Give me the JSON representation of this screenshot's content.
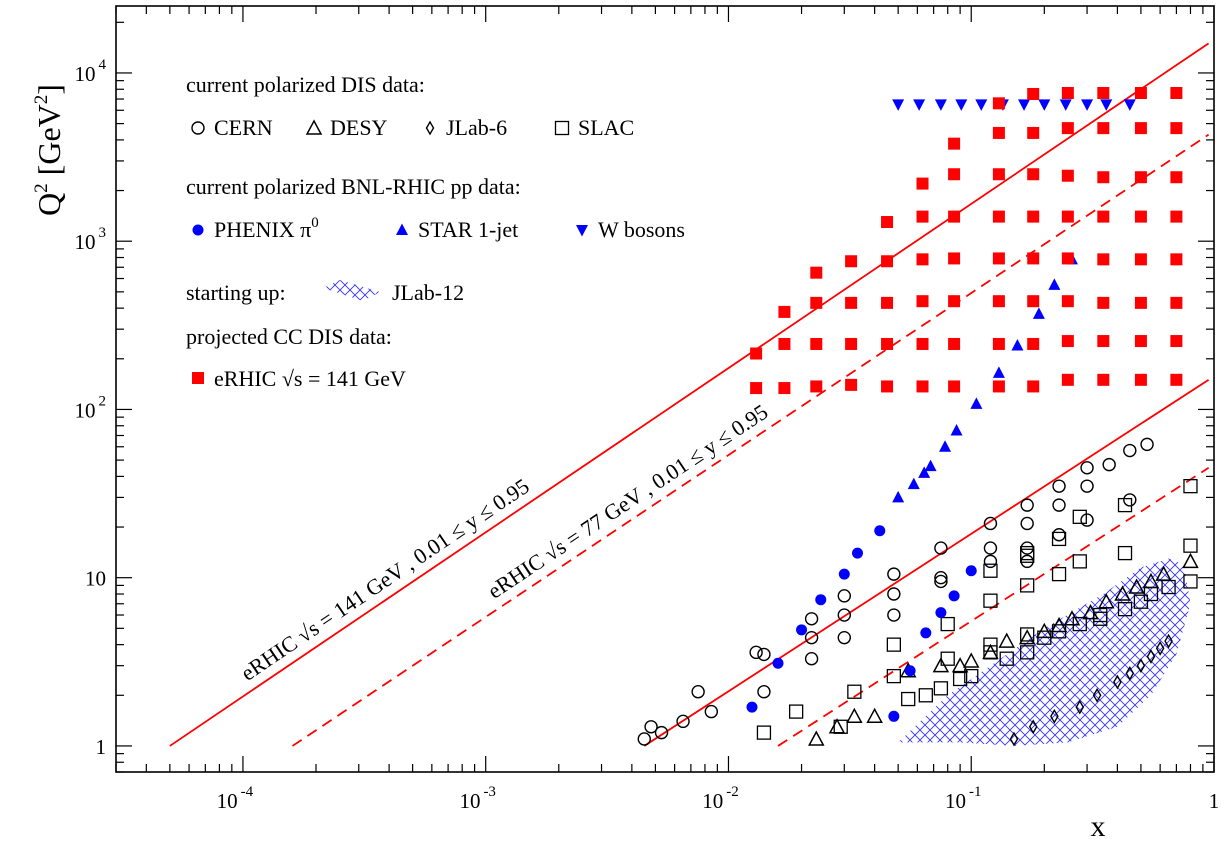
{
  "chart_data": {
    "type": "scatter",
    "x_scale": "log",
    "y_scale": "log",
    "xlim": [
      3e-05,
      1
    ],
    "ylim": [
      0.7,
      25000
    ],
    "xlabel": "x",
    "ylabel": "Q2 [GeV2]",
    "x_ticks": [
      {
        "value": 0.0001,
        "base": "10",
        "exp": "-4"
      },
      {
        "value": 0.001,
        "base": "10",
        "exp": "-3"
      },
      {
        "value": 0.01,
        "base": "10",
        "exp": "-2"
      },
      {
        "value": 0.1,
        "base": "10",
        "exp": "-1"
      },
      {
        "value": 1,
        "base": "1",
        "exp": ""
      }
    ],
    "y_ticks": [
      {
        "value": 1,
        "base": "1",
        "exp": ""
      },
      {
        "value": 10,
        "base": "10",
        "exp": ""
      },
      {
        "value": 100,
        "base": "10",
        "exp": "2"
      },
      {
        "value": 1000,
        "base": "10",
        "exp": "3"
      },
      {
        "value": 10000,
        "base": "10",
        "exp": "4"
      }
    ],
    "legend": {
      "groups": [
        {
          "title": "current polarized DIS data:",
          "items": [
            {
              "label": "CERN",
              "marker": "circle-open"
            },
            {
              "label": "DESY",
              "marker": "triangle-open"
            },
            {
              "label": "JLab-6",
              "marker": "diamond-open"
            },
            {
              "label": "SLAC",
              "marker": "square-open"
            }
          ]
        },
        {
          "title": "current polarized BNL-RHIC pp data:",
          "items": [
            {
              "label": "PHENIX π",
              "sup": "0",
              "marker": "circle-filled"
            },
            {
              "label": "STAR 1-jet",
              "marker": "triangle-filled"
            },
            {
              "label": "W bosons",
              "marker": "triangle-down-filled"
            }
          ]
        },
        {
          "title": "starting up:",
          "items": [
            {
              "label": "JLab-12",
              "marker": "hatch"
            }
          ]
        },
        {
          "title": "projected CC DIS data:",
          "items": [
            {
              "label": "eRHIC √s = 141 GeV",
              "marker": "square-filled"
            }
          ]
        }
      ]
    },
    "lines": [
      {
        "label": "eRHIC √s = 141 GeV , 0.01 ≤ y ≤ 0.95",
        "style": "solid",
        "x": [
          5e-05,
          0.95
        ],
        "y": [
          1,
          15000
        ]
      },
      {
        "label": "",
        "style": "solid",
        "x": [
          0.0045,
          0.95
        ],
        "y": [
          1,
          150
        ]
      },
      {
        "label": "eRHIC √s = 77 GeV , 0.01 ≤ y ≤ 0.95",
        "style": "dashed",
        "x": [
          0.00016,
          0.95
        ],
        "y": [
          1,
          4300
        ]
      },
      {
        "label": "",
        "style": "dashed",
        "x": [
          0.016,
          0.95
        ],
        "y": [
          1,
          45
        ]
      }
    ],
    "series": [
      {
        "name": "CERN",
        "marker": "circle-open",
        "color": "#000000",
        "points": [
          [
            0.0045,
            1.1
          ],
          [
            0.0048,
            1.3
          ],
          [
            0.0053,
            1.2
          ],
          [
            0.0065,
            1.4
          ],
          [
            0.0075,
            2.1
          ],
          [
            0.0085,
            1.6
          ],
          [
            0.013,
            3.6
          ],
          [
            0.014,
            3.5
          ],
          [
            0.014,
            2.1
          ],
          [
            0.022,
            5.7
          ],
          [
            0.022,
            4.4
          ],
          [
            0.022,
            3.3
          ],
          [
            0.03,
            7.8
          ],
          [
            0.03,
            6.0
          ],
          [
            0.03,
            4.4
          ],
          [
            0.048,
            10.5
          ],
          [
            0.048,
            8.0
          ],
          [
            0.048,
            6.0
          ],
          [
            0.075,
            15.0
          ],
          [
            0.075,
            10.0
          ],
          [
            0.075,
            9.5
          ],
          [
            0.12,
            21.0
          ],
          [
            0.12,
            15.0
          ],
          [
            0.12,
            12.5
          ],
          [
            0.17,
            27.0
          ],
          [
            0.17,
            21.0
          ],
          [
            0.17,
            15.0
          ],
          [
            0.17,
            12.5
          ],
          [
            0.23,
            35.0
          ],
          [
            0.23,
            27.0
          ],
          [
            0.23,
            18.0
          ],
          [
            0.3,
            45.0
          ],
          [
            0.3,
            35.0
          ],
          [
            0.3,
            22.0
          ],
          [
            0.37,
            47.0
          ],
          [
            0.45,
            57.0
          ],
          [
            0.45,
            29.0
          ],
          [
            0.53,
            62.0
          ]
        ]
      },
      {
        "name": "DESY",
        "marker": "triangle-open",
        "color": "#000000",
        "points": [
          [
            0.023,
            1.1
          ],
          [
            0.028,
            1.3
          ],
          [
            0.033,
            1.5
          ],
          [
            0.04,
            1.5
          ],
          [
            0.055,
            2.8
          ],
          [
            0.075,
            3.0
          ],
          [
            0.09,
            3.0
          ],
          [
            0.1,
            3.2
          ],
          [
            0.12,
            3.6
          ],
          [
            0.14,
            4.2
          ],
          [
            0.17,
            4.4
          ],
          [
            0.2,
            4.8
          ],
          [
            0.23,
            5.2
          ],
          [
            0.26,
            5.7
          ],
          [
            0.31,
            6.2
          ],
          [
            0.36,
            7.2
          ],
          [
            0.42,
            8.0
          ],
          [
            0.48,
            8.8
          ],
          [
            0.55,
            9.5
          ],
          [
            0.62,
            10.5
          ],
          [
            0.8,
            12.5
          ]
        ]
      },
      {
        "name": "JLab-6",
        "marker": "diamond-open",
        "color": "#000000",
        "points": [
          [
            0.15,
            1.1
          ],
          [
            0.18,
            1.3
          ],
          [
            0.22,
            1.5
          ],
          [
            0.28,
            1.7
          ],
          [
            0.33,
            2.0
          ],
          [
            0.4,
            2.4
          ],
          [
            0.45,
            2.7
          ],
          [
            0.5,
            3.0
          ],
          [
            0.55,
            3.4
          ],
          [
            0.6,
            3.8
          ],
          [
            0.65,
            4.2
          ]
        ]
      },
      {
        "name": "SLAC",
        "marker": "square-open",
        "color": "#000000",
        "points": [
          [
            0.014,
            1.2
          ],
          [
            0.019,
            1.6
          ],
          [
            0.029,
            1.3
          ],
          [
            0.033,
            2.1
          ],
          [
            0.048,
            2.6
          ],
          [
            0.048,
            4.0
          ],
          [
            0.055,
            1.9
          ],
          [
            0.065,
            2.0
          ],
          [
            0.075,
            2.2
          ],
          [
            0.08,
            3.3
          ],
          [
            0.08,
            5.3
          ],
          [
            0.09,
            2.5
          ],
          [
            0.1,
            2.6
          ],
          [
            0.12,
            3.6
          ],
          [
            0.12,
            4.0
          ],
          [
            0.12,
            7.3
          ],
          [
            0.12,
            11.0
          ],
          [
            0.14,
            3.3
          ],
          [
            0.17,
            3.6
          ],
          [
            0.17,
            4.6
          ],
          [
            0.17,
            9.0
          ],
          [
            0.17,
            13.5
          ],
          [
            0.17,
            14.0
          ],
          [
            0.2,
            4.4
          ],
          [
            0.23,
            4.8
          ],
          [
            0.23,
            10.5
          ],
          [
            0.23,
            17.0
          ],
          [
            0.28,
            5.3
          ],
          [
            0.28,
            12.5
          ],
          [
            0.28,
            23.0
          ],
          [
            0.34,
            5.7
          ],
          [
            0.34,
            6.0
          ],
          [
            0.43,
            6.5
          ],
          [
            0.43,
            14.0
          ],
          [
            0.43,
            27.0
          ],
          [
            0.5,
            7.2
          ],
          [
            0.55,
            8.0
          ],
          [
            0.65,
            8.8
          ],
          [
            0.8,
            9.5
          ],
          [
            0.8,
            15.5
          ],
          [
            0.8,
            35.0
          ]
        ]
      },
      {
        "name": "PHENIX π0",
        "marker": "circle-filled",
        "color": "#0000ff",
        "points": [
          [
            0.0125,
            1.7
          ],
          [
            0.016,
            3.1
          ],
          [
            0.02,
            4.9
          ],
          [
            0.024,
            7.4
          ],
          [
            0.03,
            10.5
          ],
          [
            0.034,
            14.0
          ],
          [
            0.042,
            19.0
          ],
          [
            0.048,
            1.5
          ],
          [
            0.056,
            2.8
          ],
          [
            0.065,
            4.7
          ],
          [
            0.075,
            6.2
          ],
          [
            0.085,
            7.8
          ],
          [
            0.1,
            11.0
          ]
        ]
      },
      {
        "name": "STAR 1-jet",
        "marker": "triangle-filled",
        "color": "#0000ff",
        "points": [
          [
            0.05,
            30
          ],
          [
            0.058,
            36
          ],
          [
            0.064,
            42
          ],
          [
            0.068,
            46
          ],
          [
            0.078,
            60
          ],
          [
            0.087,
            75
          ],
          [
            0.105,
            108
          ],
          [
            0.13,
            165
          ],
          [
            0.155,
            240
          ],
          [
            0.19,
            370
          ],
          [
            0.22,
            550
          ],
          [
            0.26,
            780
          ]
        ]
      },
      {
        "name": "W bosons",
        "marker": "triangle-down-filled",
        "color": "#0000ff",
        "points": [
          [
            0.05,
            6500
          ],
          [
            0.061,
            6500
          ],
          [
            0.075,
            6500
          ],
          [
            0.091,
            6500
          ],
          [
            0.11,
            6500
          ],
          [
            0.135,
            6500
          ],
          [
            0.165,
            6500
          ],
          [
            0.2,
            6500
          ],
          [
            0.245,
            6500
          ],
          [
            0.3,
            6500
          ],
          [
            0.36,
            6500
          ],
          [
            0.45,
            6500
          ]
        ]
      },
      {
        "name": "eRHIC √s = 141 GeV",
        "marker": "square-filled",
        "color": "#ff0000",
        "points": [
          [
            0.013,
            215
          ],
          [
            0.013,
            134
          ],
          [
            0.017,
            380
          ],
          [
            0.017,
            245
          ],
          [
            0.017,
            134
          ],
          [
            0.023,
            650
          ],
          [
            0.023,
            430
          ],
          [
            0.023,
            245
          ],
          [
            0.023,
            137
          ],
          [
            0.032,
            760
          ],
          [
            0.032,
            430
          ],
          [
            0.032,
            245
          ],
          [
            0.032,
            140
          ],
          [
            0.045,
            1300
          ],
          [
            0.045,
            760
          ],
          [
            0.045,
            430
          ],
          [
            0.045,
            245
          ],
          [
            0.045,
            137
          ],
          [
            0.063,
            2200
          ],
          [
            0.063,
            1400
          ],
          [
            0.063,
            780
          ],
          [
            0.063,
            440
          ],
          [
            0.063,
            245
          ],
          [
            0.063,
            137
          ],
          [
            0.085,
            3800
          ],
          [
            0.085,
            2500
          ],
          [
            0.085,
            1400
          ],
          [
            0.085,
            790
          ],
          [
            0.085,
            440
          ],
          [
            0.085,
            245
          ],
          [
            0.085,
            137
          ],
          [
            0.13,
            6600
          ],
          [
            0.13,
            4400
          ],
          [
            0.13,
            2500
          ],
          [
            0.13,
            1400
          ],
          [
            0.13,
            790
          ],
          [
            0.13,
            440
          ],
          [
            0.13,
            245
          ],
          [
            0.13,
            137
          ],
          [
            0.18,
            7500
          ],
          [
            0.18,
            4400
          ],
          [
            0.18,
            2500
          ],
          [
            0.18,
            1400
          ],
          [
            0.18,
            790
          ],
          [
            0.18,
            440
          ],
          [
            0.18,
            245
          ],
          [
            0.18,
            137
          ],
          [
            0.25,
            7600
          ],
          [
            0.25,
            4700
          ],
          [
            0.25,
            2450
          ],
          [
            0.25,
            1400
          ],
          [
            0.25,
            790
          ],
          [
            0.25,
            440
          ],
          [
            0.25,
            255
          ],
          [
            0.25,
            150
          ],
          [
            0.35,
            7600
          ],
          [
            0.35,
            4700
          ],
          [
            0.35,
            2400
          ],
          [
            0.35,
            1400
          ],
          [
            0.35,
            780
          ],
          [
            0.35,
            430
          ],
          [
            0.35,
            255
          ],
          [
            0.35,
            150
          ],
          [
            0.5,
            7600
          ],
          [
            0.5,
            4700
          ],
          [
            0.5,
            2400
          ],
          [
            0.5,
            1400
          ],
          [
            0.5,
            780
          ],
          [
            0.5,
            430
          ],
          [
            0.5,
            255
          ],
          [
            0.5,
            150
          ],
          [
            0.7,
            7600
          ],
          [
            0.7,
            4700
          ],
          [
            0.7,
            2400
          ],
          [
            0.7,
            1400
          ],
          [
            0.7,
            780
          ],
          [
            0.7,
            430
          ],
          [
            0.7,
            255
          ],
          [
            0.7,
            150
          ]
        ]
      }
    ],
    "region": {
      "name": "JLab-12",
      "style": "hatch",
      "color": "#0000ff",
      "x": [
        0.05,
        0.09,
        0.15,
        0.25,
        0.4,
        0.55,
        0.7,
        0.8,
        0.75,
        0.65,
        0.5,
        0.35,
        0.2,
        0.12,
        0.08,
        0.05
      ],
      "y": [
        1.05,
        1.05,
        1.0,
        1.05,
        1.3,
        2.0,
        3.5,
        7.0,
        12.0,
        13.0,
        11.5,
        8.0,
        5.0,
        3.0,
        2.0,
        1.05
      ]
    }
  }
}
